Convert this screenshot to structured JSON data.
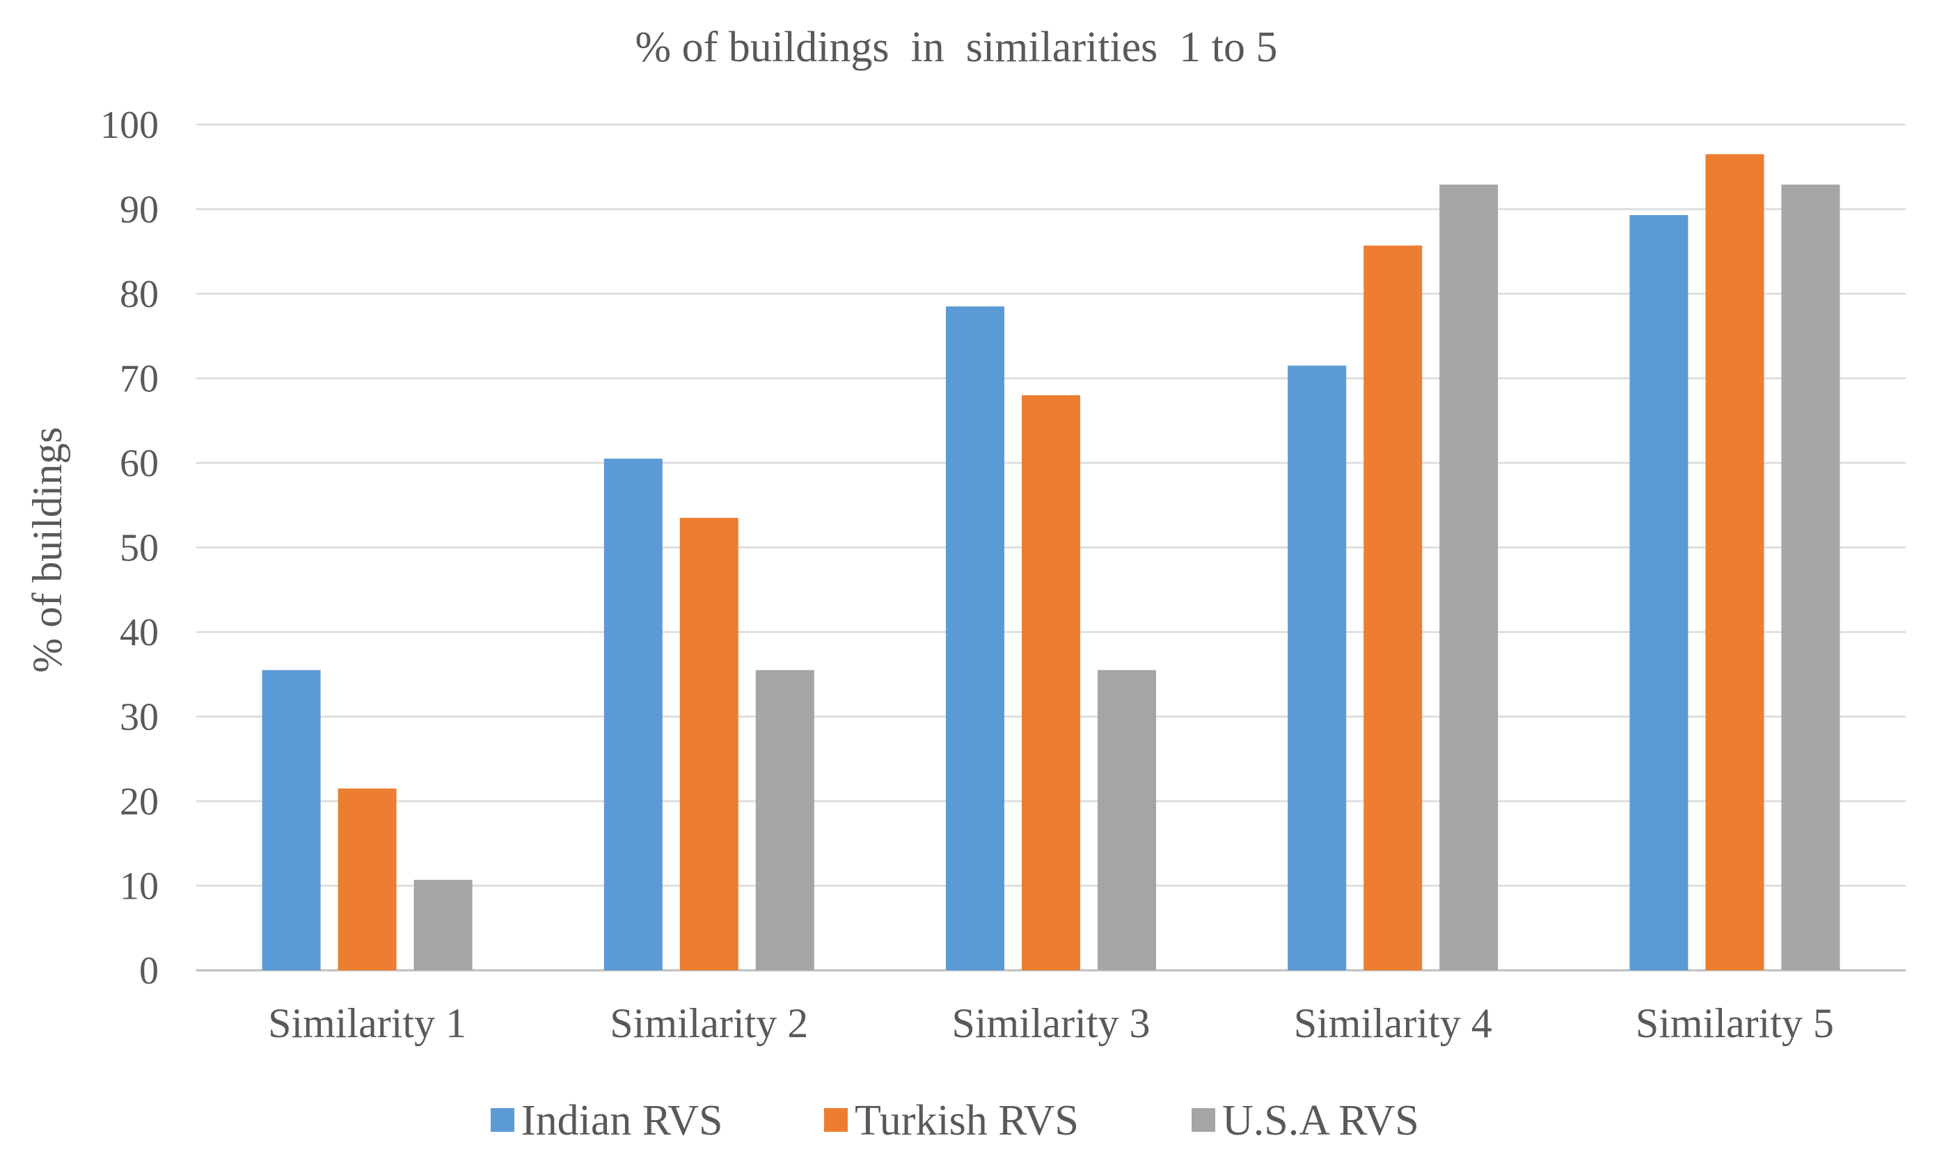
{
  "chart_data": {
    "type": "bar",
    "title": "% of buildings  in  similarities  1 to 5",
    "xlabel": "",
    "ylabel": "% of buildings",
    "ylim": [
      0,
      100
    ],
    "yticks": [
      0,
      10,
      20,
      30,
      40,
      50,
      60,
      70,
      80,
      90,
      100
    ],
    "grid": true,
    "legend_position": "bottom",
    "categories": [
      "Similarity 1",
      "Similarity 2",
      "Similarity 3",
      "Similarity 4",
      "Similarity 5"
    ],
    "series": [
      {
        "name": "Indian RVS",
        "color": "#5B9BD5",
        "values": [
          35.5,
          60.5,
          78.5,
          71.5,
          89.3
        ]
      },
      {
        "name": "Turkish RVS",
        "color": "#ED7D31",
        "values": [
          21.5,
          53.5,
          68.0,
          85.7,
          96.5
        ]
      },
      {
        "name": "U.S.A RVS",
        "color": "#A5A5A5",
        "values": [
          10.7,
          35.5,
          35.5,
          92.9,
          92.9
        ]
      }
    ]
  }
}
